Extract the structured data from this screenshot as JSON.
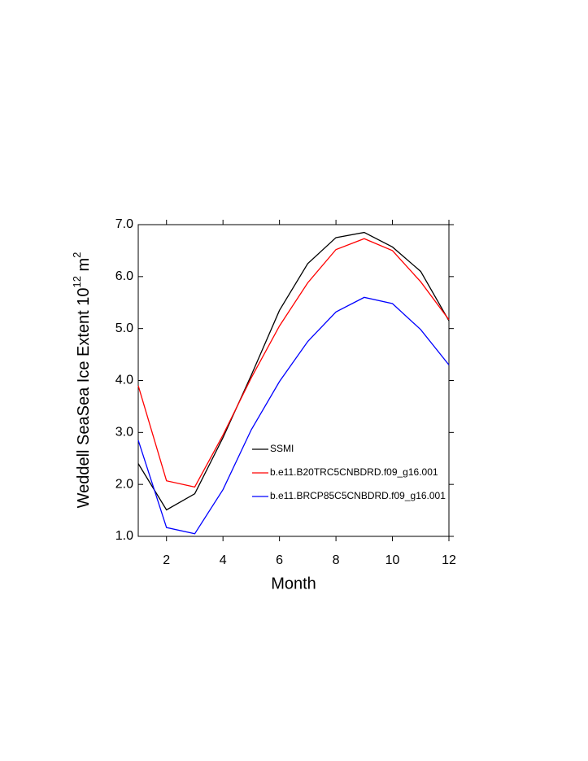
{
  "chart_data": {
    "type": "line",
    "x_label": "Month",
    "y_label": {
      "text": "Weddell SeaSea Ice Extent 10",
      "exponent": "12",
      "unit": " m",
      "unit_exponent": "2"
    },
    "x": [
      1,
      2,
      3,
      4,
      5,
      6,
      7,
      8,
      9,
      10,
      11,
      12
    ],
    "xlim": [
      1,
      12
    ],
    "xticks": [
      2,
      4,
      6,
      8,
      10,
      12
    ],
    "ylim": [
      1,
      7
    ],
    "yticks": [
      {
        "value": 1,
        "label": "1.0"
      },
      {
        "value": 2,
        "label": "2.0"
      },
      {
        "value": 3,
        "label": "3.0"
      },
      {
        "value": 4,
        "label": "4.0"
      },
      {
        "value": 5,
        "label": "5.0"
      },
      {
        "value": 6,
        "label": "6.0"
      },
      {
        "value": 7,
        "label": "7.0"
      }
    ],
    "grid": false,
    "series": [
      {
        "name": "SSMI",
        "color": "#000000",
        "values": [
          2.4,
          1.51,
          1.82,
          2.9,
          4.1,
          5.35,
          6.25,
          6.75,
          6.85,
          6.57,
          6.1,
          5.15
        ]
      },
      {
        "name": "b.e11.B20TRC5CNBDRD.f09_g16.001",
        "color": "#ff0000",
        "values": [
          3.9,
          2.07,
          1.95,
          2.95,
          4.05,
          5.05,
          5.88,
          6.52,
          6.73,
          6.5,
          5.9,
          5.17
        ]
      },
      {
        "name": "b.e11.BRCP85C5CNBDRD.f09_g16.001",
        "color": "#0000ff",
        "values": [
          2.85,
          1.17,
          1.05,
          1.9,
          3.05,
          3.98,
          4.75,
          5.32,
          5.6,
          5.48,
          4.98,
          4.3
        ]
      }
    ]
  }
}
